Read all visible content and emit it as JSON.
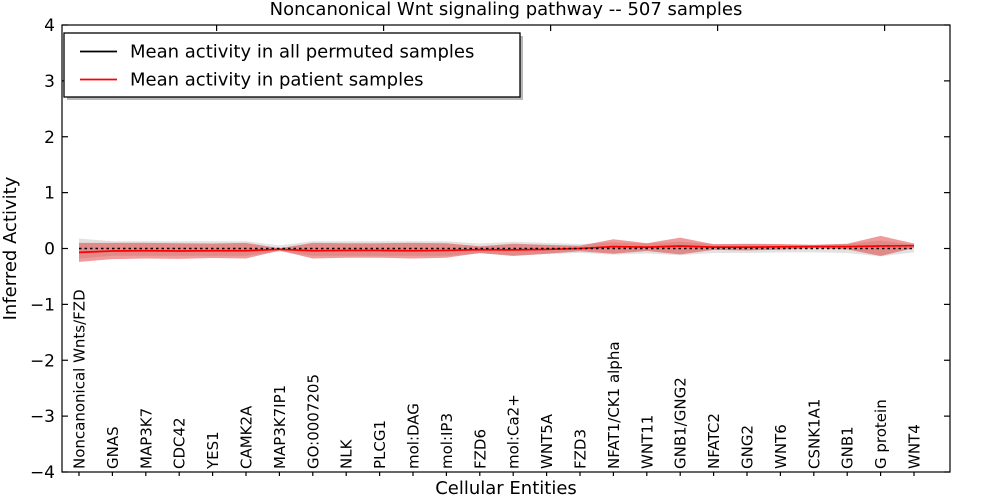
{
  "title": "Noncanonical Wnt signaling pathway -- 507 samples",
  "axes": {
    "xlabel": "Cellular Entities",
    "ylabel": "Inferred Activity",
    "ytick_labels": [
      "4",
      "3",
      "2",
      "1",
      "0",
      "−1",
      "−2",
      "−3",
      "−4"
    ]
  },
  "legend": {
    "items": [
      {
        "label": "Mean activity in all permuted samples",
        "color": "#000000"
      },
      {
        "label": "Mean activity in patient samples",
        "color": "#ff0000"
      }
    ]
  },
  "chart_data": {
    "type": "line",
    "title": "Noncanonical Wnt signaling pathway -- 507 samples",
    "xlabel": "Cellular Entities",
    "ylabel": "Inferred Activity",
    "ylim": [
      -4,
      4
    ],
    "yticks": [
      4,
      3,
      2,
      1,
      0,
      -1,
      -2,
      -3,
      -4
    ],
    "grid": false,
    "legend_position": "upper left",
    "categories": [
      "Noncanonical Wnts/FZD",
      "GNAS",
      "MAP3K7",
      "CDC42",
      "YES1",
      "CAMK2A",
      "MAP3K7IP1",
      "GO:0007205",
      "NLK",
      "PLCG1",
      "mol:DAG",
      "mol:IP3",
      "FZD6",
      "mol:Ca2+",
      "WNT5A",
      "FZD3",
      "NFAT1/CK1 alpha",
      "WNT11",
      "GNB1/GNG2",
      "NFATC2",
      "GNG2",
      "WNT6",
      "CSNK1A1",
      "GNB1",
      "G protein",
      "WNT4"
    ],
    "series": [
      {
        "name": "Mean activity in all permuted samples",
        "color": "#000000",
        "line_style": "dashed",
        "band_color": "rgba(110,110,110,0.20)",
        "mean": [
          0,
          0,
          0,
          0,
          0,
          0,
          0,
          0,
          0,
          0,
          0,
          0,
          0,
          0,
          0,
          0,
          0,
          0,
          0,
          0,
          0,
          0,
          0,
          0,
          0,
          0
        ],
        "std": [
          0.18,
          0.13,
          0.13,
          0.13,
          0.13,
          0.13,
          0.055,
          0.13,
          0.13,
          0.13,
          0.13,
          0.13,
          0.09,
          0.12,
          0.1,
          0.08,
          0.11,
          0.09,
          0.12,
          0.08,
          0.08,
          0.07,
          0.07,
          0.08,
          0.14,
          0.07
        ]
      },
      {
        "name": "Mean activity in patient samples",
        "color": "#ff0000",
        "line_style": "solid",
        "band_color": "rgba(225,30,30,0.45)",
        "mean": [
          -0.07,
          -0.045,
          -0.04,
          -0.045,
          -0.04,
          -0.04,
          -0.015,
          -0.04,
          -0.035,
          -0.035,
          -0.04,
          -0.035,
          -0.02,
          -0.025,
          -0.015,
          0.0,
          0.035,
          0.025,
          0.045,
          0.025,
          0.025,
          0.03,
          0.035,
          0.035,
          0.045,
          0.05
        ],
        "std": [
          0.17,
          0.145,
          0.14,
          0.14,
          0.13,
          0.14,
          0.02,
          0.14,
          0.13,
          0.13,
          0.14,
          0.13,
          0.06,
          0.11,
          0.08,
          0.05,
          0.13,
          0.07,
          0.15,
          0.05,
          0.06,
          0.05,
          0.03,
          0.05,
          0.18,
          0.04
        ]
      }
    ],
    "bands_note": "shaded regions are mean ± std for each series"
  }
}
